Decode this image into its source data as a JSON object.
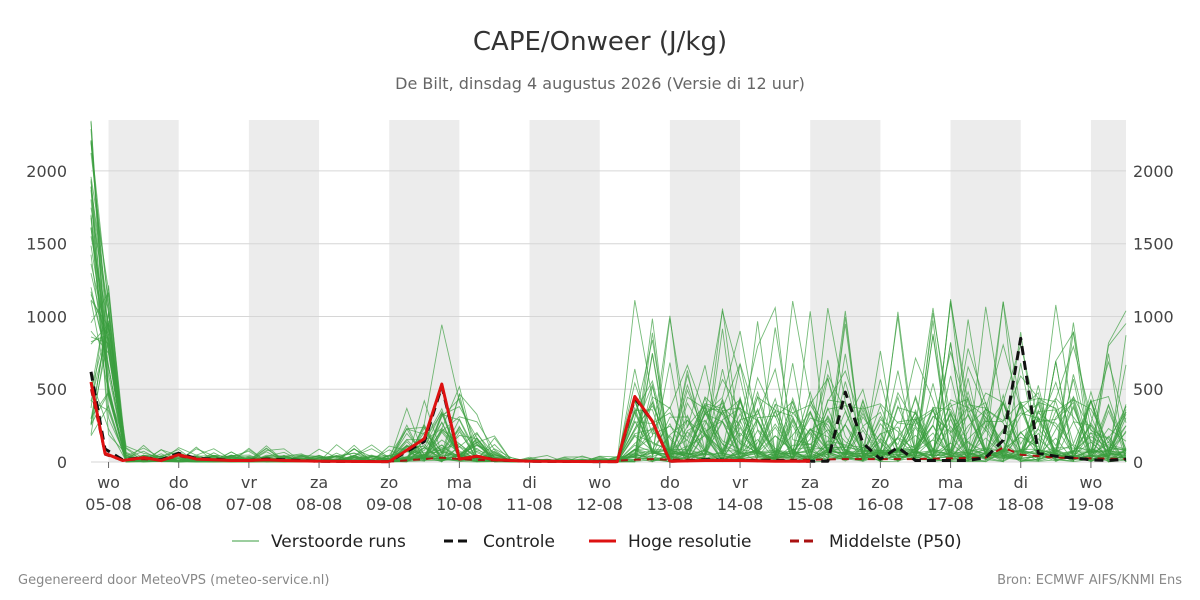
{
  "colors": {
    "perturbed": "#3a9e3f",
    "control": "#111111",
    "high_res": "#dd1111",
    "median": "#aa1111",
    "weekend_band": "#ececec",
    "grid": "#d6d6d6"
  },
  "footer": {
    "left": "Gegenereerd door MeteoVPS (meteo-service.nl)",
    "right": "Bron: ECMWF AIFS/KNMI Ens"
  },
  "chart_data": {
    "type": "line",
    "title": "CAPE/Onweer (J/kg)",
    "subtitle": "De Bilt, dinsdag  4 augustus 2026 (Versie di 12 uur)",
    "x_unit": "days from 05-08 00 UTC",
    "xlim": [
      -0.25,
      14.5
    ],
    "ylim": [
      0,
      2350
    ],
    "y_ticks": [
      0,
      500,
      1000,
      1500,
      2000
    ],
    "grid": true,
    "shaded_days": [
      [
        0,
        1
      ],
      [
        2,
        3
      ],
      [
        4,
        5
      ],
      [
        6,
        7
      ],
      [
        8,
        9
      ],
      [
        10,
        11
      ],
      [
        12,
        13
      ],
      [
        14,
        14.5
      ]
    ],
    "x_ticks": [
      {
        "x": 0,
        "day": "wo",
        "date": "05-08"
      },
      {
        "x": 1,
        "day": "do",
        "date": "06-08"
      },
      {
        "x": 2,
        "day": "vr",
        "date": "07-08"
      },
      {
        "x": 3,
        "day": "za",
        "date": "08-08"
      },
      {
        "x": 4,
        "day": "zo",
        "date": "09-08"
      },
      {
        "x": 5,
        "day": "ma",
        "date": "10-08"
      },
      {
        "x": 6,
        "day": "di",
        "date": "11-08"
      },
      {
        "x": 7,
        "day": "wo",
        "date": "12-08"
      },
      {
        "x": 8,
        "day": "do",
        "date": "13-08"
      },
      {
        "x": 9,
        "day": "vr",
        "date": "14-08"
      },
      {
        "x": 10,
        "day": "za",
        "date": "15-08"
      },
      {
        "x": 11,
        "day": "zo",
        "date": "16-08"
      },
      {
        "x": 12,
        "day": "ma",
        "date": "17-08"
      },
      {
        "x": 13,
        "day": "di",
        "date": "18-08"
      },
      {
        "x": 14,
        "day": "wo",
        "date": "19-08"
      }
    ],
    "legend": {
      "placement": "bottom",
      "entries": [
        {
          "key": "perturbed",
          "label": "Verstoorde runs",
          "style": "thin"
        },
        {
          "key": "control",
          "label": "Controle",
          "style": "dashed"
        },
        {
          "key": "high_res",
          "label": "Hoge resolutie",
          "style": "solid"
        },
        {
          "key": "median",
          "label": "Middelste (P50)",
          "style": "dashed"
        }
      ]
    },
    "series": [
      {
        "name": "Controle",
        "style": "control",
        "points": [
          [
            -0.25,
            620
          ],
          [
            -0.05,
            90
          ],
          [
            0.2,
            15
          ],
          [
            0.5,
            30
          ],
          [
            0.75,
            15
          ],
          [
            1.0,
            60
          ],
          [
            1.25,
            25
          ],
          [
            1.5,
            20
          ],
          [
            1.75,
            10
          ],
          [
            2.0,
            10
          ],
          [
            2.25,
            20
          ],
          [
            2.5,
            15
          ],
          [
            3.0,
            5
          ],
          [
            4.0,
            3
          ],
          [
            4.5,
            140
          ],
          [
            4.75,
            520
          ],
          [
            5.0,
            20
          ],
          [
            5.25,
            40
          ],
          [
            5.5,
            15
          ],
          [
            6.0,
            5
          ],
          [
            7.0,
            3
          ],
          [
            7.25,
            3
          ],
          [
            7.5,
            440
          ],
          [
            7.75,
            280
          ],
          [
            8.0,
            5
          ],
          [
            8.5,
            15
          ],
          [
            9.0,
            10
          ],
          [
            9.5,
            10
          ],
          [
            10.0,
            5
          ],
          [
            10.25,
            5
          ],
          [
            10.5,
            480
          ],
          [
            10.75,
            130
          ],
          [
            11.0,
            20
          ],
          [
            11.25,
            100
          ],
          [
            11.5,
            10
          ],
          [
            12.0,
            10
          ],
          [
            12.25,
            10
          ],
          [
            12.5,
            30
          ],
          [
            12.75,
            150
          ],
          [
            13.0,
            850
          ],
          [
            13.25,
            60
          ],
          [
            13.5,
            40
          ],
          [
            14.0,
            15
          ],
          [
            14.25,
            10
          ],
          [
            14.5,
            20
          ]
        ]
      },
      {
        "name": "Hoge resolutie",
        "style": "high_res",
        "points": [
          [
            -0.25,
            550
          ],
          [
            -0.05,
            60
          ],
          [
            0.2,
            10
          ],
          [
            0.5,
            30
          ],
          [
            0.75,
            10
          ],
          [
            1.0,
            50
          ],
          [
            1.25,
            20
          ],
          [
            1.5,
            15
          ],
          [
            1.75,
            10
          ],
          [
            2.0,
            10
          ],
          [
            2.25,
            15
          ],
          [
            2.5,
            10
          ],
          [
            3.0,
            5
          ],
          [
            4.0,
            3
          ],
          [
            4.5,
            160
          ],
          [
            4.75,
            535
          ],
          [
            5.0,
            20
          ],
          [
            5.25,
            40
          ],
          [
            5.5,
            15
          ],
          [
            6.0,
            5
          ],
          [
            7.0,
            3
          ],
          [
            7.25,
            3
          ],
          [
            7.5,
            450
          ],
          [
            7.75,
            280
          ],
          [
            8.0,
            5
          ],
          [
            8.5,
            10
          ],
          [
            9.0,
            10
          ],
          [
            9.5,
            5
          ],
          [
            10.0,
            5
          ]
        ]
      },
      {
        "name": "Middelste (P50)",
        "style": "median",
        "points": [
          [
            -0.25,
            500
          ],
          [
            -0.05,
            50
          ],
          [
            0.2,
            10
          ],
          [
            0.5,
            20
          ],
          [
            0.75,
            10
          ],
          [
            1.0,
            40
          ],
          [
            1.25,
            20
          ],
          [
            1.5,
            15
          ],
          [
            1.75,
            10
          ],
          [
            2.0,
            10
          ],
          [
            2.25,
            15
          ],
          [
            2.5,
            10
          ],
          [
            3.0,
            5
          ],
          [
            4.0,
            3
          ],
          [
            4.5,
            20
          ],
          [
            4.75,
            30
          ],
          [
            5.0,
            20
          ],
          [
            5.25,
            15
          ],
          [
            5.5,
            10
          ],
          [
            6.0,
            5
          ],
          [
            7.0,
            3
          ],
          [
            7.5,
            15
          ],
          [
            7.75,
            20
          ],
          [
            8.0,
            15
          ],
          [
            8.5,
            15
          ],
          [
            9.0,
            15
          ],
          [
            9.5,
            15
          ],
          [
            10.0,
            15
          ],
          [
            10.5,
            20
          ],
          [
            11.0,
            20
          ],
          [
            11.5,
            20
          ],
          [
            12.0,
            25
          ],
          [
            12.5,
            30
          ],
          [
            12.75,
            100
          ],
          [
            13.0,
            50
          ],
          [
            13.5,
            30
          ],
          [
            14.0,
            25
          ],
          [
            14.5,
            20
          ]
        ]
      }
    ],
    "ensemble": {
      "name": "Verstoorde runs",
      "members": 50,
      "reference_peaks": [
        {
          "x": -0.25,
          "max": 2350
        },
        {
          "x": 4.75,
          "max": 1350
        },
        {
          "x": 7.75,
          "max": 1350
        },
        {
          "x": 9.5,
          "max": 1570
        },
        {
          "x": 9.75,
          "max": 1430
        },
        {
          "x": 12.5,
          "max": 1440
        },
        {
          "x": 13.25,
          "max": 840
        }
      ]
    }
  }
}
